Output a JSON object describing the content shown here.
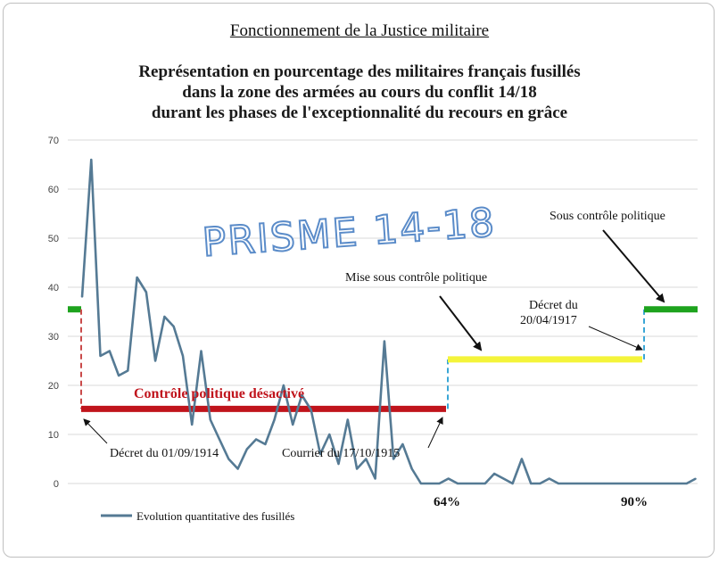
{
  "header": {
    "title": "Fonctionnement de la Justice militaire",
    "subtitle_lines": [
      "Représentation en pourcentage des militaires français fusillés",
      "dans la zone des armées au cours du conflit 14/18",
      "durant les phases de l'exceptionnalité du recours en grâce"
    ]
  },
  "watermark": "PRISME 14-18",
  "annotations": {
    "controle_desactive": "Contrôle politique désactivé",
    "decret_1914": "Décret du 01/09/1914",
    "courrier_1915": "Courrier du 17/10/1915",
    "mise_sous_controle": "Mise sous contrôle politique",
    "decret_1917_line1": "Décret du",
    "decret_1917_line2": "20/04/1917",
    "sous_controle": "Sous contrôle politique",
    "pct_64": "64%",
    "pct_90": "90%"
  },
  "colors": {
    "series": "#557a94",
    "red": "#c0141c",
    "yellow": "#f4f43a",
    "green": "#1ea31e",
    "red_dashed": "#c94a4a",
    "cyan_dashed": "#3aa6d6",
    "watermark_stroke": "#5b8cc9"
  },
  "chart_data": {
    "type": "line",
    "ylim": [
      0,
      70
    ],
    "yticks": [
      0,
      10,
      20,
      30,
      40,
      50,
      60,
      70
    ],
    "grid": true,
    "legend_position": "bottom-left",
    "series": [
      {
        "name": "Evolution quantitative des fusillés",
        "x": [
          0,
          1,
          2,
          3,
          4,
          5,
          6,
          7,
          8,
          9,
          10,
          11,
          12,
          13,
          14,
          15,
          16,
          17,
          18,
          19,
          20,
          21,
          22,
          23,
          24,
          25,
          26,
          27,
          28,
          29,
          30,
          31,
          32,
          33,
          34,
          35,
          36,
          37,
          38,
          39,
          40,
          41,
          42,
          43,
          44,
          45,
          46,
          47,
          48,
          49,
          50,
          51,
          52,
          53,
          54,
          55,
          56,
          57,
          58,
          59,
          60,
          61,
          62,
          63,
          64,
          65,
          66,
          67
        ],
        "values": [
          38,
          66,
          26,
          27,
          22,
          23,
          42,
          39,
          25,
          34,
          32,
          26,
          12,
          27,
          13,
          9,
          5,
          3,
          7,
          9,
          8,
          13,
          20,
          12,
          18,
          15,
          6,
          10,
          4,
          13,
          3,
          5,
          1,
          29,
          5,
          8,
          3,
          0,
          0,
          0,
          1,
          0,
          0,
          0,
          0,
          2,
          1,
          0,
          5,
          0,
          0,
          1,
          0,
          0,
          0,
          0,
          0,
          0,
          0,
          0,
          0,
          0,
          0,
          0,
          0,
          0,
          0,
          1
        ]
      }
    ],
    "reference_levels": [
      {
        "label": "Contrôle politique désactivé",
        "color": "#c0141c",
        "level": 15.2
      },
      {
        "label": "Mise sous contrôle politique",
        "color": "#f4f43a",
        "level": 25.3
      },
      {
        "label": "Sous contrôle politique",
        "color": "#1ea31e",
        "level": 35.5
      }
    ],
    "category_markers": [
      "64%",
      "90%"
    ]
  }
}
